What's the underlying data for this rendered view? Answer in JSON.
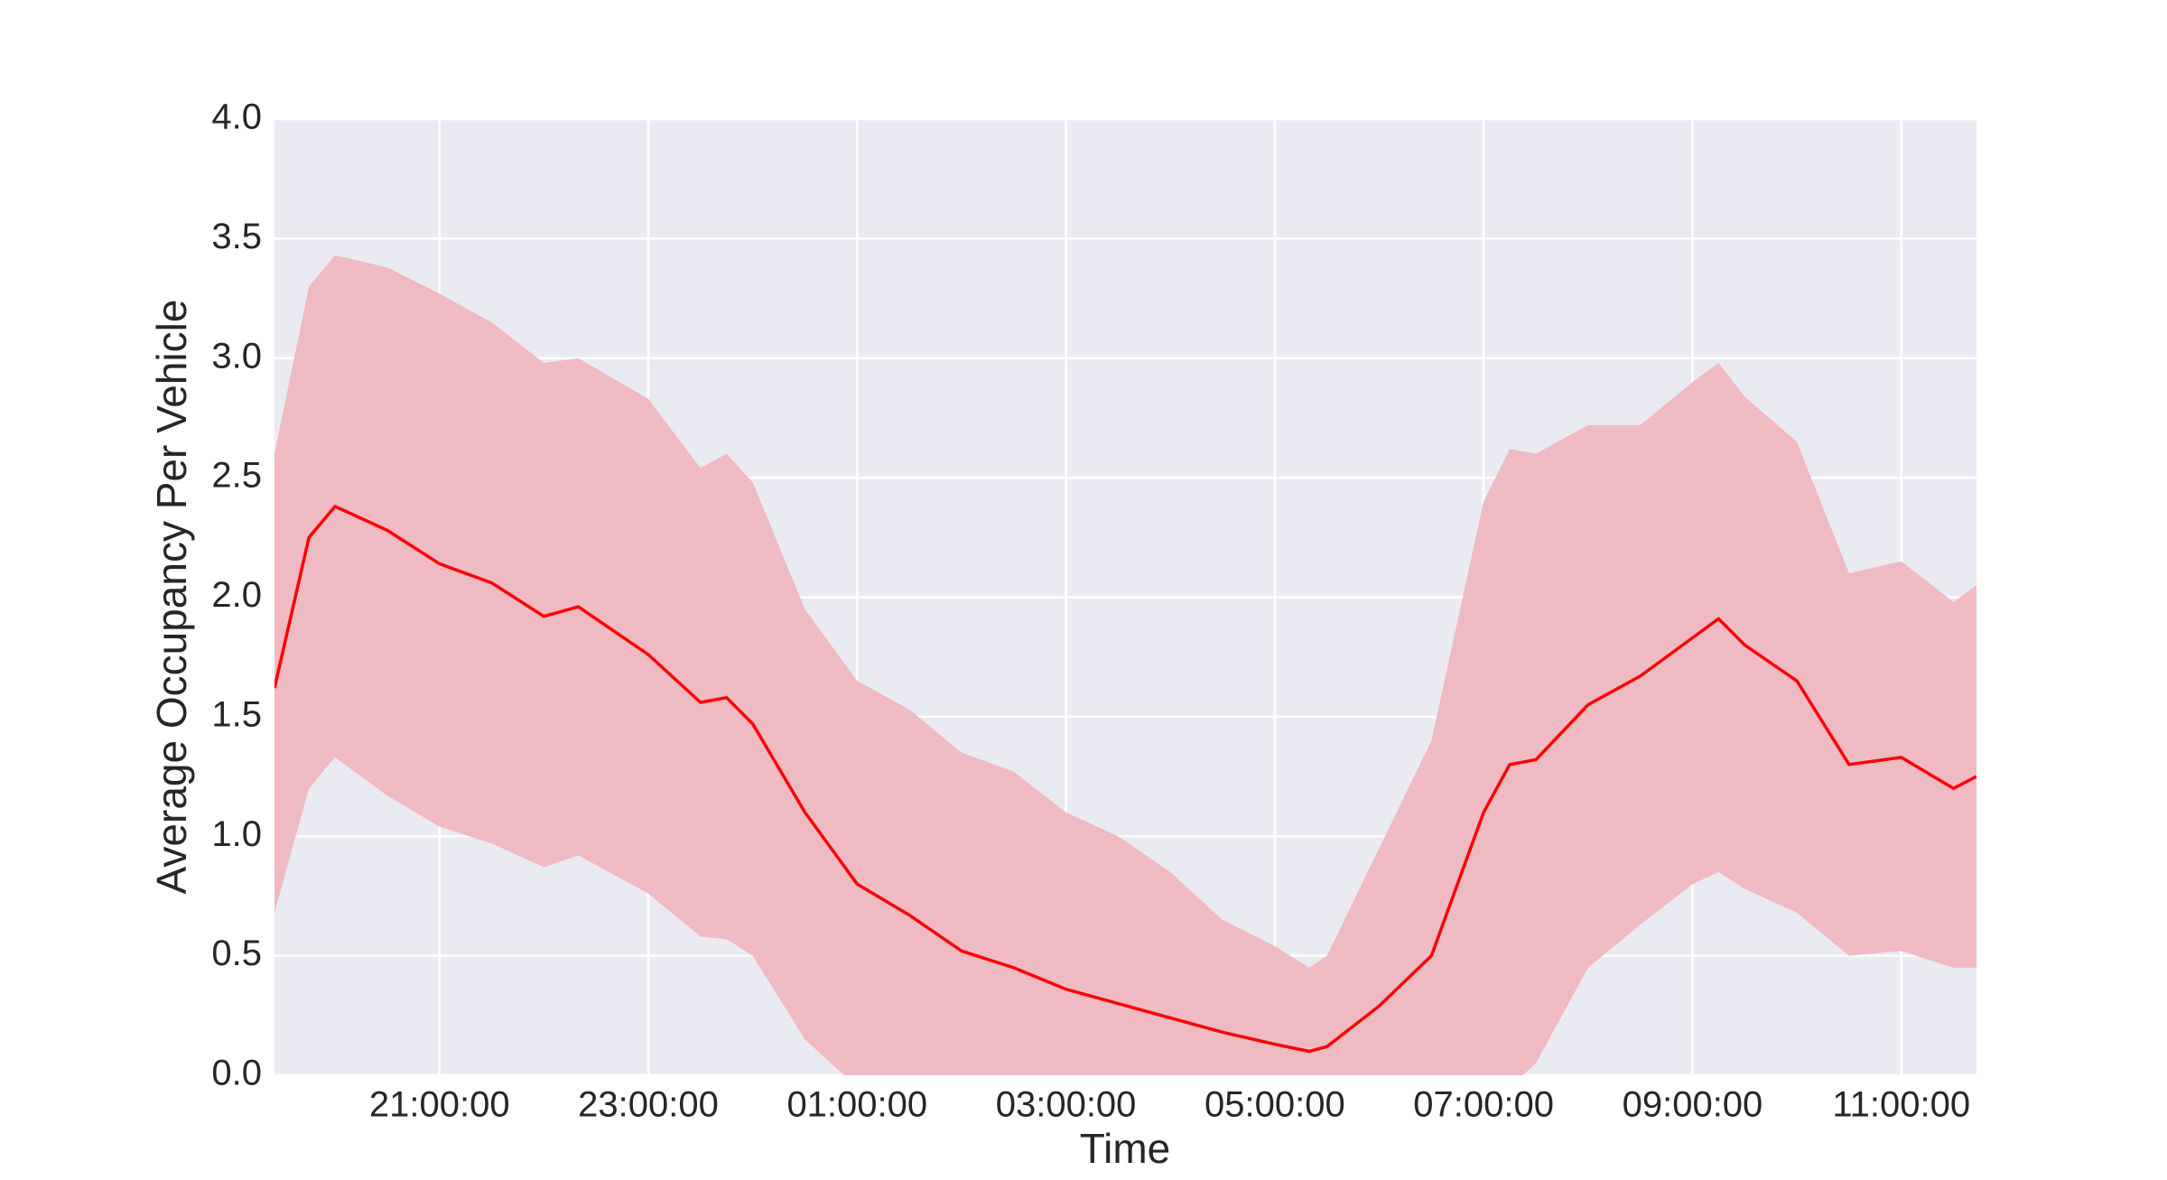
{
  "chart_data": {
    "type": "line",
    "xlabel": "Time",
    "ylabel": "Average Occupancy Per Vehicle",
    "x": [
      19.42,
      19.75,
      20.0,
      20.5,
      21.0,
      21.5,
      22.0,
      22.33,
      23.0,
      23.5,
      23.75,
      24.0,
      24.5,
      25.0,
      25.5,
      26.0,
      26.5,
      27.0,
      27.5,
      28.0,
      28.5,
      29.0,
      29.33,
      29.5,
      30.0,
      30.5,
      31.0,
      31.25,
      31.5,
      32.0,
      32.5,
      33.0,
      33.25,
      33.5,
      34.0,
      34.5,
      35.0,
      35.5,
      35.72
    ],
    "series": [
      {
        "color": "#ff0000",
        "band_color": "#efbac2",
        "values": [
          1.62,
          2.25,
          2.38,
          2.28,
          2.14,
          2.06,
          1.92,
          1.96,
          1.76,
          1.56,
          1.58,
          1.47,
          1.1,
          0.8,
          0.67,
          0.52,
          0.45,
          0.36,
          0.3,
          0.24,
          0.18,
          0.13,
          0.1,
          0.12,
          0.29,
          0.5,
          1.1,
          1.3,
          1.32,
          1.55,
          1.67,
          1.83,
          1.91,
          1.8,
          1.65,
          1.3,
          1.33,
          1.2,
          1.25
        ],
        "upper": [
          2.6,
          3.3,
          3.43,
          3.38,
          3.27,
          3.15,
          2.98,
          3.0,
          2.83,
          2.54,
          2.6,
          2.48,
          1.95,
          1.65,
          1.53,
          1.35,
          1.27,
          1.1,
          1.0,
          0.85,
          0.65,
          0.54,
          0.45,
          0.5,
          0.95,
          1.4,
          2.4,
          2.62,
          2.6,
          2.72,
          2.72,
          2.9,
          2.98,
          2.84,
          2.65,
          2.1,
          2.15,
          1.98,
          2.05
        ],
        "lower": [
          0.68,
          1.2,
          1.33,
          1.17,
          1.04,
          0.97,
          0.87,
          0.92,
          0.76,
          0.58,
          0.57,
          0.5,
          0.15,
          -0.05,
          -0.2,
          -0.35,
          -0.4,
          -0.4,
          -0.45,
          -0.4,
          -0.3,
          -0.3,
          -0.3,
          -0.3,
          -0.4,
          -0.4,
          -0.2,
          -0.05,
          0.05,
          0.45,
          0.63,
          0.8,
          0.85,
          0.78,
          0.68,
          0.5,
          0.52,
          0.45,
          0.45
        ]
      }
    ],
    "xlim": [
      19.42,
      35.72
    ],
    "xticks": [
      {
        "value": 21,
        "label": "21:00:00"
      },
      {
        "value": 23,
        "label": "23:00:00"
      },
      {
        "value": 25,
        "label": "01:00:00"
      },
      {
        "value": 27,
        "label": "03:00:00"
      },
      {
        "value": 29,
        "label": "05:00:00"
      },
      {
        "value": 31,
        "label": "07:00:00"
      },
      {
        "value": 33,
        "label": "09:00:00"
      },
      {
        "value": 35,
        "label": "11:00:00"
      }
    ],
    "ylim": [
      0,
      4
    ],
    "yticks": [
      {
        "value": 0,
        "label": "0.0"
      },
      0.5,
      {
        "value": 1,
        "label": "1.0"
      },
      1.5,
      {
        "value": 2,
        "label": "2.0"
      },
      2.5,
      {
        "value": 3,
        "label": "3.0"
      },
      3.5,
      {
        "value": 4,
        "label": "4.0"
      }
    ],
    "grid": true,
    "background": "#eaeaf2"
  }
}
